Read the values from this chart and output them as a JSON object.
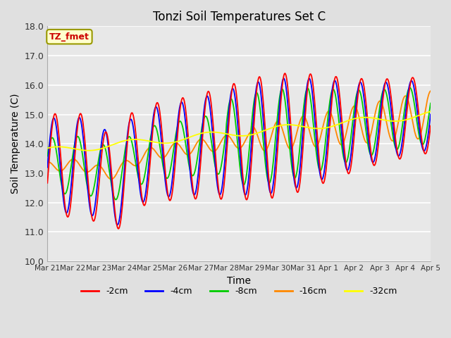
{
  "title": "Tonzi Soil Temperatures Set C",
  "xlabel": "Time",
  "ylabel": "Soil Temperature (C)",
  "ylim": [
    10.0,
    18.0
  ],
  "yticks": [
    10.0,
    11.0,
    12.0,
    13.0,
    14.0,
    15.0,
    16.0,
    17.0,
    18.0
  ],
  "xtick_labels": [
    "Mar 21",
    "Mar 22",
    "Mar 23",
    "Mar 24",
    "Mar 25",
    "Mar 26",
    "Mar 27",
    "Mar 28",
    "Mar 29",
    "Mar 30",
    "Mar 31",
    "Apr 1",
    "Apr 2",
    "Apr 3",
    "Apr 4",
    "Apr 5"
  ],
  "legend_labels": [
    "-2cm",
    "-4cm",
    "-8cm",
    "-16cm",
    "-32cm"
  ],
  "legend_colors": [
    "#ff0000",
    "#0000ff",
    "#00cc00",
    "#ff8800",
    "#ffff00"
  ],
  "annotation_text": "TZ_fmet",
  "annotation_color": "#cc0000",
  "annotation_bg": "#ffffcc",
  "bg_color": "#e0e0e0",
  "plot_bg": "#e8e8e8",
  "n_days": 15,
  "points_per_day": 48
}
